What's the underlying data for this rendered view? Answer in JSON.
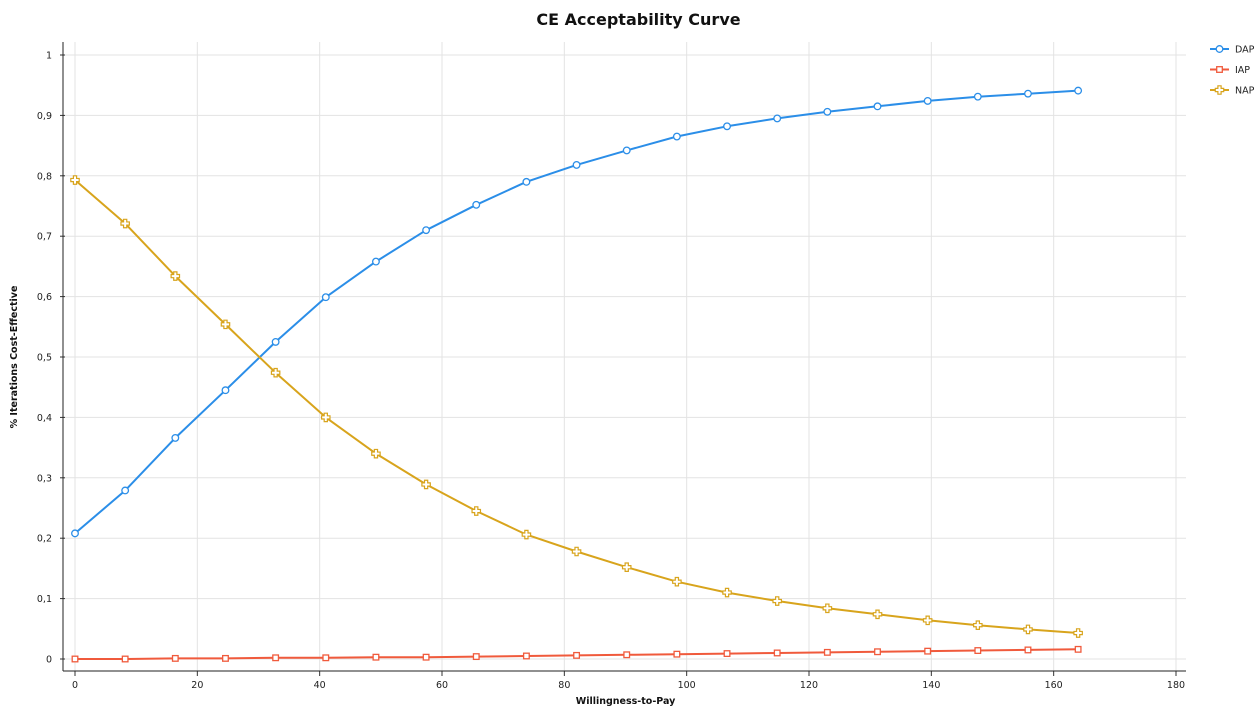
{
  "chart_data": {
    "type": "line",
    "title": "CE Acceptability Curve",
    "xlabel": "Willingness-to-Pay",
    "ylabel": "% Iterations Cost-Effective",
    "xlim": [
      0,
      180
    ],
    "ylim": [
      0,
      1
    ],
    "xticks": [
      0,
      20,
      40,
      60,
      80,
      100,
      120,
      140,
      160,
      180
    ],
    "yticks": [
      0,
      0.1,
      0.2,
      0.3,
      0.4,
      0.5,
      0.6,
      0.7,
      0.8,
      0.9,
      1
    ],
    "ytick_labels": [
      "0",
      "0,1",
      "0,2",
      "0,3",
      "0,4",
      "0,5",
      "0,6",
      "0,7",
      "0,8",
      "0,9",
      "1"
    ],
    "grid": true,
    "legend_position": "top-right",
    "x": [
      0,
      8.2,
      16.4,
      24.6,
      32.8,
      41,
      49.2,
      57.4,
      65.6,
      73.8,
      82,
      90.2,
      98.4,
      106.6,
      114.8,
      123,
      131.2,
      139.4,
      147.6,
      155.8,
      164
    ],
    "series": [
      {
        "name": "DAP",
        "color": "#2b8ee8",
        "marker": "circle",
        "values": [
          0.208,
          0.279,
          0.366,
          0.445,
          0.525,
          0.599,
          0.658,
          0.71,
          0.752,
          0.79,
          0.818,
          0.842,
          0.865,
          0.882,
          0.895,
          0.906,
          0.915,
          0.924,
          0.931,
          0.936,
          0.941
        ]
      },
      {
        "name": "IAP",
        "color": "#f05a3c",
        "marker": "square",
        "values": [
          0.0,
          0.0,
          0.001,
          0.001,
          0.002,
          0.002,
          0.003,
          0.003,
          0.004,
          0.005,
          0.006,
          0.007,
          0.008,
          0.009,
          0.01,
          0.011,
          0.012,
          0.013,
          0.014,
          0.015,
          0.016
        ]
      },
      {
        "name": "NAP",
        "color": "#d8a41c",
        "marker": "cross",
        "values": [
          0.793,
          0.721,
          0.634,
          0.554,
          0.474,
          0.4,
          0.34,
          0.289,
          0.245,
          0.206,
          0.178,
          0.152,
          0.128,
          0.11,
          0.096,
          0.084,
          0.074,
          0.064,
          0.056,
          0.049,
          0.043
        ]
      }
    ]
  }
}
